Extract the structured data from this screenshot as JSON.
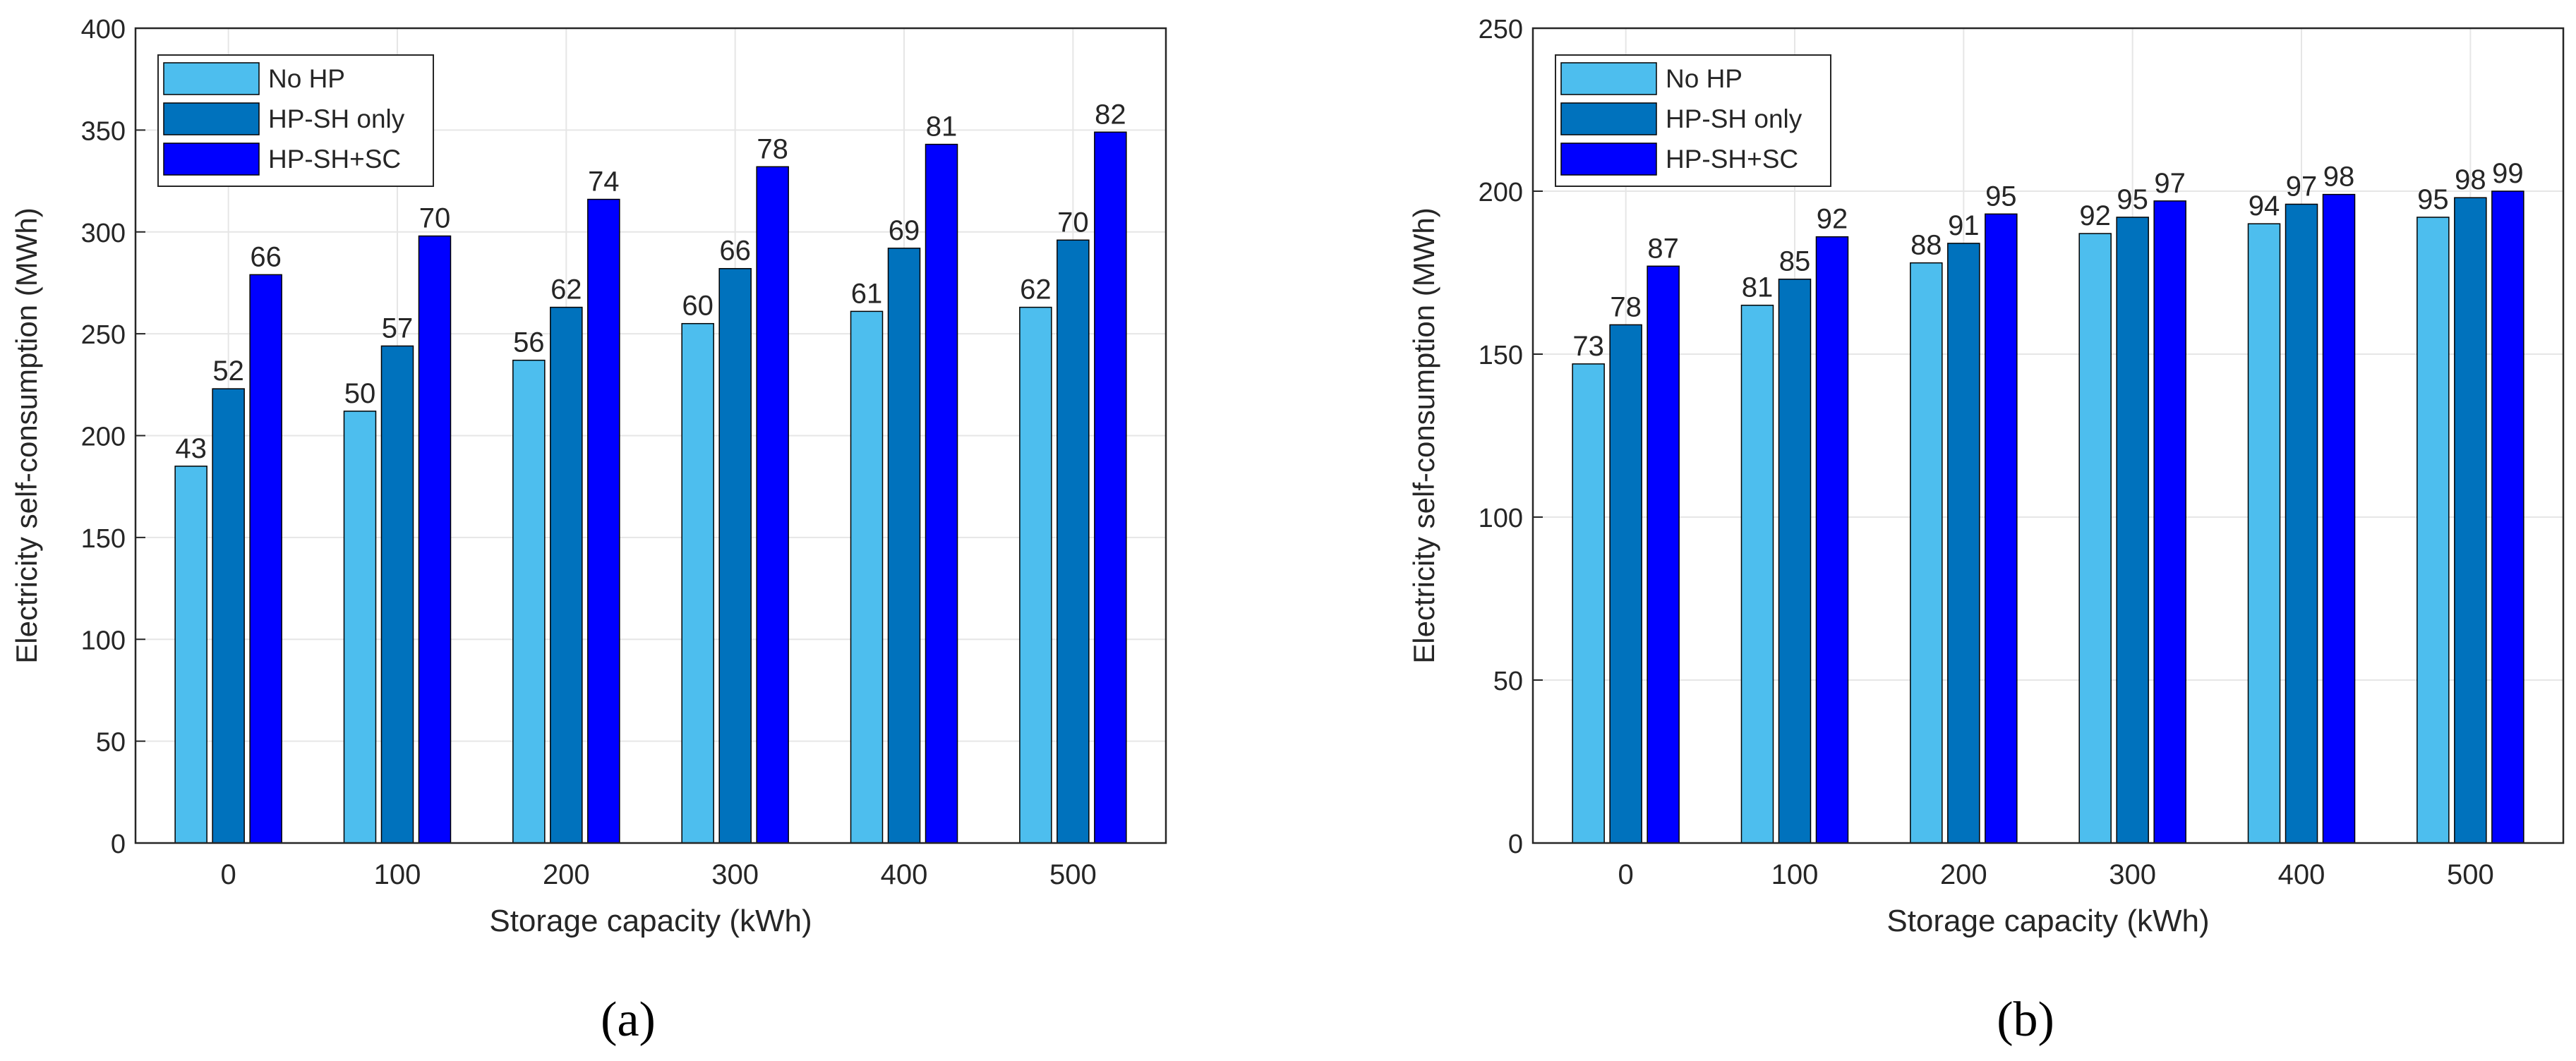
{
  "chart_data": [
    {
      "type": "bar",
      "panel_label": "(a)",
      "xlabel": "Storage capacity (kWh)",
      "ylabel": "Electricity self-consumption (MWh)",
      "categories": [
        "0",
        "100",
        "200",
        "300",
        "400",
        "500"
      ],
      "ylim": [
        0,
        400
      ],
      "yticks": [
        "0",
        "50",
        "100",
        "150",
        "200",
        "250",
        "300",
        "350",
        "400"
      ],
      "grid": true,
      "legend_position": "top-left",
      "series": [
        {
          "name": "No HP",
          "color": "#4DBEEE",
          "values": [
            185,
            212,
            237,
            255,
            261,
            263
          ],
          "labels": [
            "43",
            "50",
            "56",
            "60",
            "61",
            "62"
          ]
        },
        {
          "name": "HP-SH only",
          "color": "#0072BD",
          "values": [
            223,
            244,
            263,
            282,
            292,
            296
          ],
          "labels": [
            "52",
            "57",
            "62",
            "66",
            "69",
            "70"
          ]
        },
        {
          "name": "HP-SH+SC",
          "color": "#0000FF",
          "values": [
            279,
            298,
            316,
            332,
            343,
            349
          ],
          "labels": [
            "66",
            "70",
            "74",
            "78",
            "81",
            "82"
          ]
        }
      ]
    },
    {
      "type": "bar",
      "panel_label": "(b)",
      "xlabel": "Storage capacity (kWh)",
      "ylabel": "Electricity self-consumption (MWh)",
      "categories": [
        "0",
        "100",
        "200",
        "300",
        "400",
        "500"
      ],
      "ylim": [
        0,
        250
      ],
      "yticks": [
        "0",
        "50",
        "100",
        "150",
        "200",
        "250"
      ],
      "grid": true,
      "legend_position": "top-left",
      "series": [
        {
          "name": "No HP",
          "color": "#4DBEEE",
          "values": [
            147,
            165,
            178,
            187,
            190,
            192
          ],
          "labels": [
            "73",
            "81",
            "88",
            "92",
            "94",
            "95"
          ]
        },
        {
          "name": "HP-SH only",
          "color": "#0072BD",
          "values": [
            159,
            173,
            184,
            192,
            196,
            198
          ],
          "labels": [
            "78",
            "85",
            "91",
            "95",
            "97",
            "98"
          ]
        },
        {
          "name": "HP-SH+SC",
          "color": "#0000FF",
          "values": [
            177,
            186,
            193,
            197,
            199,
            200
          ],
          "labels": [
            "87",
            "92",
            "95",
            "97",
            "98",
            "99"
          ]
        }
      ]
    }
  ]
}
